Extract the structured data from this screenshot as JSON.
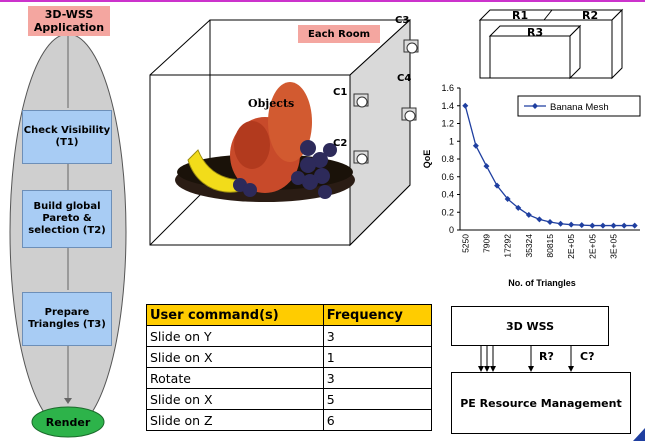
{
  "flow": {
    "app": "3D-WSS Application",
    "tasks": [
      {
        "label": "Check Visibility (T1)"
      },
      {
        "label": "Build global Pareto & selection (T2)"
      },
      {
        "label": "Prepare Triangles (T3)"
      }
    ],
    "render": "Render"
  },
  "room": {
    "title": "Each Room",
    "objects_label": "Objects",
    "cameras": [
      "C1",
      "C2",
      "C3",
      "C4"
    ]
  },
  "rooms_diagram": {
    "r1": "R1",
    "r2": "R2",
    "r3": "R3"
  },
  "chart_data": {
    "type": "line",
    "series": [
      {
        "name": "Banana Mesh",
        "values": [
          1.4,
          0.95,
          0.72,
          0.5,
          0.35,
          0.25,
          0.17,
          0.12,
          0.09,
          0.07,
          0.06,
          0.055,
          0.05,
          0.05,
          0.05,
          0.05,
          0.05
        ]
      }
    ],
    "categories": [
      "5250",
      "",
      "7909",
      "",
      "17292",
      "",
      "35324",
      "",
      "80815",
      "",
      "2E+05",
      "",
      "2E+05",
      "",
      "3E+05",
      "",
      ""
    ],
    "ylabel": "QoE",
    "xlabel": "No. of Triangles",
    "ylim": [
      0,
      1.6
    ],
    "yticks": [
      "0",
      "0.2",
      "0.4",
      "0.6",
      "0.8",
      "1",
      "1.2",
      "1.4",
      "1.6"
    ],
    "legend": "top-right",
    "color": "#1f3fa0"
  },
  "table": {
    "headers": [
      "User command(s)",
      "Frequency"
    ],
    "rows": [
      [
        "Slide on Y",
        "3"
      ],
      [
        "Slide on X",
        "1"
      ],
      [
        "Rotate",
        "3"
      ],
      [
        "Slide on X",
        "5"
      ],
      [
        "Slide on Z",
        "6"
      ]
    ]
  },
  "system": {
    "wss": "3D WSS",
    "r_label": "R?",
    "c_label": "C?",
    "pe": "PE Resource Management"
  }
}
